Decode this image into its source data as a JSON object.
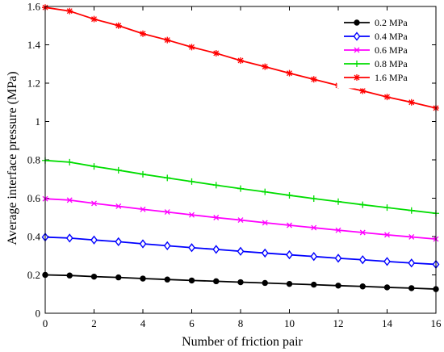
{
  "chart_data": {
    "type": "line",
    "title": "",
    "xlabel": "Number of friction pair",
    "ylabel": "Average interface pressure (MPa)",
    "xlim": [
      0,
      16
    ],
    "ylim": [
      0,
      1.6
    ],
    "xticks": [
      "0",
      "2",
      "4",
      "6",
      "8",
      "10",
      "12",
      "14",
      "16"
    ],
    "yticks": [
      "0",
      "0.2",
      "0.4",
      "0.6",
      "0.8",
      "1",
      "1.2",
      "1.4",
      "1.6"
    ],
    "grid": false,
    "legend_position": "top-right",
    "x": [
      0,
      1,
      2,
      3,
      4,
      5,
      6,
      7,
      8,
      9,
      10,
      11,
      12,
      13,
      14,
      15,
      16
    ],
    "series": [
      {
        "name": "0.2 MPa",
        "color": "#000000",
        "marker": "circle",
        "values": [
          0.2,
          0.197,
          0.191,
          0.187,
          0.181,
          0.176,
          0.171,
          0.167,
          0.162,
          0.158,
          0.153,
          0.149,
          0.144,
          0.14,
          0.135,
          0.131,
          0.126
        ]
      },
      {
        "name": "0.4 MPa",
        "color": "#0000ff",
        "marker": "diamond",
        "values": [
          0.397,
          0.392,
          0.382,
          0.373,
          0.362,
          0.352,
          0.342,
          0.333,
          0.323,
          0.314,
          0.305,
          0.296,
          0.287,
          0.279,
          0.27,
          0.262,
          0.255
        ]
      },
      {
        "name": "0.6 MPa",
        "color": "#ff00ff",
        "marker": "x",
        "values": [
          0.597,
          0.59,
          0.573,
          0.558,
          0.542,
          0.528,
          0.513,
          0.499,
          0.486,
          0.472,
          0.459,
          0.446,
          0.433,
          0.421,
          0.409,
          0.398,
          0.387
        ]
      },
      {
        "name": "0.8 MPa",
        "color": "#00dd00",
        "marker": "plus",
        "values": [
          0.797,
          0.788,
          0.766,
          0.746,
          0.725,
          0.706,
          0.687,
          0.668,
          0.65,
          0.633,
          0.615,
          0.598,
          0.582,
          0.566,
          0.551,
          0.536,
          0.521
        ]
      },
      {
        "name": "1.6 MPa",
        "color": "#ff0000",
        "marker": "star",
        "values": [
          1.595,
          1.576,
          1.534,
          1.5,
          1.458,
          1.425,
          1.388,
          1.356,
          1.318,
          1.286,
          1.252,
          1.22,
          1.188,
          1.16,
          1.128,
          1.1,
          1.07
        ]
      }
    ]
  }
}
